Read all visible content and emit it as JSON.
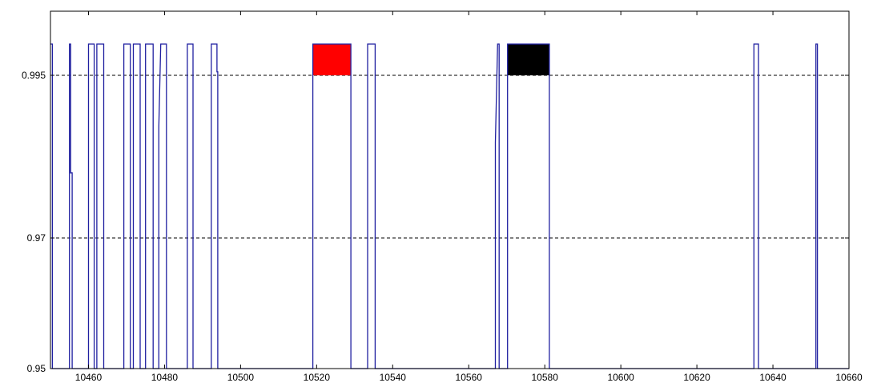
{
  "chart_data": {
    "type": "line",
    "title": "",
    "xlabel": "",
    "ylabel": "",
    "xlim": [
      10450,
      10660
    ],
    "ylim": [
      0.95,
      0.9995
    ],
    "x_ticks": [
      10460,
      10480,
      10500,
      10520,
      10540,
      10560,
      10580,
      10600,
      10620,
      10640,
      10660
    ],
    "x_tick_labels": [
      "10460",
      "10480",
      "10500",
      "10520",
      "10540",
      "10560",
      "10580",
      "10600",
      "10620",
      "10640",
      "10660"
    ],
    "y_ticks": [
      0.95,
      0.97,
      0.995
    ],
    "y_tick_labels": [
      "0.95",
      "0.97",
      "0.995"
    ],
    "reference_lines": [
      {
        "y": 0.995,
        "style": "dashed",
        "color": "#000000"
      },
      {
        "y": 0.97,
        "style": "dashed",
        "color": "#000000"
      }
    ],
    "high_value": 0.9995,
    "low_value": 0.95,
    "grid": false,
    "series": [
      {
        "color": "#1f1fa0",
        "points": [
          [
            10450,
            0.9995
          ],
          [
            10450.5,
            0.9995
          ],
          [
            10450.5,
            0.95
          ],
          [
            10455,
            0.95
          ],
          [
            10455,
            0.9995
          ],
          [
            10455.3,
            0.9995
          ],
          [
            10455.3,
            0.98
          ],
          [
            10455.7,
            0.98
          ],
          [
            10455.7,
            0.95
          ],
          [
            10460,
            0.95
          ],
          [
            10460,
            0.9995
          ],
          [
            10461.5,
            0.9995
          ],
          [
            10461.5,
            0.95
          ],
          [
            10462.2,
            0.95
          ],
          [
            10462.2,
            0.9995
          ],
          [
            10464,
            0.9995
          ],
          [
            10464,
            0.95
          ],
          [
            10469.3,
            0.95
          ],
          [
            10469.3,
            0.9995
          ],
          [
            10471,
            0.9995
          ],
          [
            10471,
            0.95
          ],
          [
            10471.8,
            0.95
          ],
          [
            10471.8,
            0.9995
          ],
          [
            10473.6,
            0.9995
          ],
          [
            10473.6,
            0.95
          ],
          [
            10475,
            0.95
          ],
          [
            10475,
            0.9995
          ],
          [
            10477,
            0.9995
          ],
          [
            10477,
            0.95
          ],
          [
            10478.5,
            0.95
          ],
          [
            10478.5,
            0.9871
          ],
          [
            10479,
            0.9995
          ],
          [
            10480.5,
            0.9995
          ],
          [
            10480.5,
            0.95
          ],
          [
            10486,
            0.95
          ],
          [
            10486,
            0.9995
          ],
          [
            10487.5,
            0.9995
          ],
          [
            10487.5,
            0.95
          ],
          [
            10492.3,
            0.95
          ],
          [
            10492.3,
            0.9995
          ],
          [
            10493.8,
            0.9995
          ],
          [
            10493.8,
            0.9955
          ],
          [
            10494,
            0.9955
          ],
          [
            10494,
            0.95
          ],
          [
            10519,
            0.95
          ],
          [
            10519,
            0.9995
          ],
          [
            10529,
            0.9995
          ],
          [
            10529,
            0.95
          ],
          [
            10533.4,
            0.95
          ],
          [
            10533.4,
            0.9995
          ],
          [
            10535.4,
            0.9995
          ],
          [
            10535.4,
            0.95
          ],
          [
            10567,
            0.95
          ],
          [
            10567,
            0.9847
          ],
          [
            10567.6,
            0.9995
          ],
          [
            10568,
            0.9995
          ],
          [
            10568,
            0.95
          ],
          [
            10570.2,
            0.95
          ],
          [
            10570.2,
            0.9995
          ],
          [
            10581.2,
            0.9995
          ],
          [
            10581.2,
            0.95
          ],
          [
            10635,
            0.95
          ],
          [
            10635,
            0.9995
          ],
          [
            10636.2,
            0.9995
          ],
          [
            10636.2,
            0.95
          ],
          [
            10651.3,
            0.95
          ],
          [
            10651.3,
            0.9995
          ],
          [
            10651.7,
            0.9995
          ],
          [
            10651.7,
            0.95
          ],
          [
            10660,
            0.95
          ]
        ]
      }
    ],
    "highlights": [
      {
        "x": [
          10519,
          10529
        ],
        "y": [
          0.995,
          0.9995
        ],
        "color": "#ff0000"
      },
      {
        "x": [
          10570.2,
          10581.2
        ],
        "y": [
          0.995,
          0.9995
        ],
        "color": "#000000"
      }
    ]
  }
}
